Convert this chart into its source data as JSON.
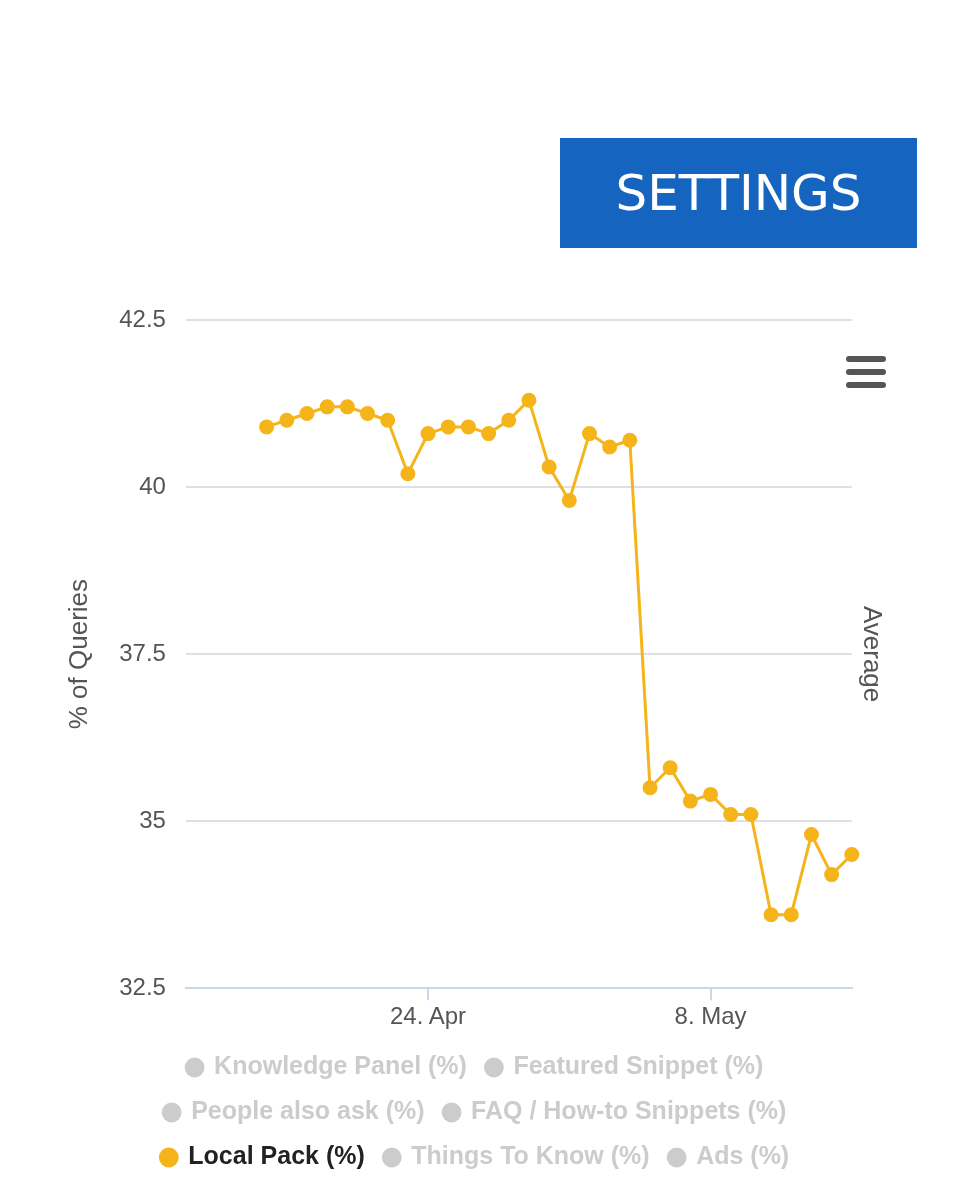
{
  "chart_data": {
    "type": "line",
    "ylabel": "% of Queries",
    "y2label": "Average",
    "annotations": [
      "SETTINGS"
    ],
    "x": [
      "--04-16",
      "--04-17",
      "--04-18",
      "--04-19",
      "--04-20",
      "--04-21",
      "--04-22",
      "--04-23",
      "--04-24",
      "--04-25",
      "--04-26",
      "--04-27",
      "--04-28",
      "--04-29",
      "--04-30",
      "--05-01",
      "--05-02",
      "--05-03",
      "--05-04",
      "--05-05",
      "--05-06",
      "--05-07",
      "--05-08",
      "--05-09",
      "--05-10",
      "--05-11",
      "--05-12",
      "--05-13",
      "--05-14",
      "--05-15"
    ],
    "series": [
      {
        "name": "Knowledge Panel (%)",
        "color": "#cccccc",
        "values": [
          null,
          null,
          null,
          null,
          null,
          null,
          null,
          null,
          null,
          null,
          null,
          null,
          null,
          null,
          null,
          null,
          null,
          null,
          null,
          null,
          null,
          null,
          null,
          null,
          null,
          null,
          null,
          null,
          null,
          null
        ]
      },
      {
        "name": "Featured Snippet (%)",
        "color": "#cccccc",
        "values": [
          null,
          null,
          null,
          null,
          null,
          null,
          null,
          null,
          null,
          null,
          null,
          null,
          null,
          null,
          null,
          null,
          null,
          null,
          null,
          null,
          null,
          null,
          null,
          null,
          null,
          null,
          null,
          null,
          null,
          null
        ]
      },
      {
        "name": "People also ask (%)",
        "color": "#cccccc",
        "values": [
          null,
          null,
          null,
          null,
          null,
          null,
          null,
          null,
          null,
          null,
          null,
          null,
          null,
          null,
          null,
          null,
          null,
          null,
          null,
          null,
          null,
          null,
          null,
          null,
          null,
          null,
          null,
          null,
          null,
          null
        ]
      },
      {
        "name": "FAQ / How-to Snippets (%)",
        "color": "#cccccc",
        "values": [
          null,
          null,
          null,
          null,
          null,
          null,
          null,
          null,
          null,
          null,
          null,
          null,
          null,
          null,
          null,
          null,
          null,
          null,
          null,
          null,
          null,
          null,
          null,
          null,
          null,
          null,
          null,
          null,
          null,
          null
        ]
      },
      {
        "name": "Local Pack (%)",
        "color": "#f4b41a",
        "values": [
          40.9,
          41.0,
          41.1,
          41.2,
          41.2,
          41.1,
          41.0,
          40.2,
          40.8,
          40.9,
          40.9,
          40.8,
          41.0,
          41.3,
          40.3,
          39.8,
          40.8,
          40.6,
          40.7,
          35.5,
          35.8,
          35.3,
          35.4,
          35.1,
          35.1,
          33.6,
          33.6,
          34.8,
          34.2,
          34.5
        ]
      },
      {
        "name": "Things To Know (%)",
        "color": "#cccccc",
        "values": [
          null,
          null,
          null,
          null,
          null,
          null,
          null,
          null,
          null,
          null,
          null,
          null,
          null,
          null,
          null,
          null,
          null,
          null,
          null,
          null,
          null,
          null,
          null,
          null,
          null,
          null,
          null,
          null,
          null,
          null
        ]
      },
      {
        "name": "Ads (%)",
        "color": "#cccccc",
        "values": [
          null,
          null,
          null,
          null,
          null,
          null,
          null,
          null,
          null,
          null,
          null,
          null,
          null,
          null,
          null,
          null,
          null,
          null,
          null,
          null,
          null,
          null,
          null,
          null,
          null,
          null,
          null,
          null,
          null,
          null
        ]
      }
    ],
    "xlim": [
      "--04-12",
      "--05-15"
    ],
    "xticks": [
      {
        "value": "--04-24",
        "label": "24. Apr"
      },
      {
        "value": "--05-08",
        "label": "8. May"
      }
    ],
    "ylim": [
      32.5,
      42.5
    ],
    "yticks": [
      {
        "value": 32.5,
        "label": "32.5"
      },
      {
        "value": 35,
        "label": "35"
      },
      {
        "value": 37.5,
        "label": "37.5"
      },
      {
        "value": 40,
        "label": "40"
      },
      {
        "value": 42.5,
        "label": "42.5"
      }
    ],
    "grid": "y",
    "legend": "bottom",
    "marker": "circle",
    "line_style": "solid"
  }
}
